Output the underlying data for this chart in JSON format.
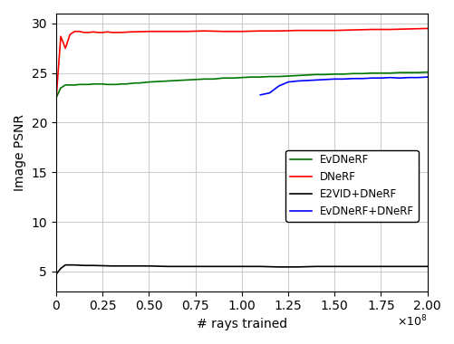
{
  "title": "",
  "xlabel": "# rays trained",
  "ylabel": "Image PSNR",
  "xlim": [
    0,
    200000000
  ],
  "ylim": [
    3,
    31
  ],
  "yticks": [
    5,
    10,
    15,
    20,
    25,
    30
  ],
  "xtick_positions": [
    0,
    25000000,
    50000000,
    75000000,
    100000000,
    125000000,
    150000000,
    175000000,
    200000000
  ],
  "xtick_labels": [
    "0",
    "0.25",
    "0.50",
    "0.75",
    "1.00",
    "1.25",
    "1.50",
    "1.75",
    "2.00"
  ],
  "legend_labels": [
    "EvDNeRF",
    "DNeRF",
    "E2VID+DNeRF",
    "EvDNeRF+DNeRF"
  ],
  "grid_color": "#cccccc",
  "series": {
    "EvDNeRF": {
      "color": "#007700",
      "x": [
        0,
        2500000,
        5000000,
        7500000,
        10000000,
        12500000,
        15000000,
        17500000,
        20000000,
        22500000,
        25000000,
        27500000,
        30000000,
        32500000,
        35000000,
        37500000,
        40000000,
        42500000,
        45000000,
        47500000,
        50000000,
        55000000,
        60000000,
        65000000,
        70000000,
        75000000,
        80000000,
        85000000,
        90000000,
        95000000,
        100000000,
        105000000,
        110000000,
        115000000,
        120000000,
        125000000,
        130000000,
        135000000,
        140000000,
        145000000,
        150000000,
        155000000,
        160000000,
        165000000,
        170000000,
        175000000,
        180000000,
        185000000,
        190000000,
        195000000,
        200000000
      ],
      "y": [
        22.5,
        23.5,
        23.8,
        23.8,
        23.8,
        23.85,
        23.85,
        23.85,
        23.9,
        23.9,
        23.9,
        23.85,
        23.85,
        23.85,
        23.9,
        23.9,
        23.95,
        24.0,
        24.0,
        24.05,
        24.1,
        24.15,
        24.2,
        24.25,
        24.3,
        24.35,
        24.4,
        24.4,
        24.5,
        24.5,
        24.55,
        24.6,
        24.6,
        24.65,
        24.65,
        24.7,
        24.75,
        24.8,
        24.85,
        24.85,
        24.9,
        24.9,
        24.95,
        24.95,
        25.0,
        25.0,
        25.0,
        25.05,
        25.05,
        25.05,
        25.1
      ]
    },
    "DNeRF": {
      "color": "#ff0000",
      "x": [
        0,
        2500000,
        5000000,
        7500000,
        10000000,
        12500000,
        15000000,
        17500000,
        20000000,
        22500000,
        25000000,
        27500000,
        30000000,
        35000000,
        40000000,
        50000000,
        60000000,
        70000000,
        80000000,
        90000000,
        100000000,
        110000000,
        120000000,
        130000000,
        140000000,
        150000000,
        160000000,
        170000000,
        180000000,
        190000000,
        200000000
      ],
      "y": [
        22.3,
        28.7,
        27.5,
        28.9,
        29.2,
        29.2,
        29.1,
        29.1,
        29.15,
        29.1,
        29.1,
        29.15,
        29.1,
        29.1,
        29.15,
        29.2,
        29.2,
        29.2,
        29.25,
        29.2,
        29.2,
        29.25,
        29.25,
        29.3,
        29.3,
        29.3,
        29.35,
        29.4,
        29.4,
        29.45,
        29.5
      ]
    },
    "E2VID+DNeRF": {
      "color": "#000000",
      "x": [
        0,
        2500000,
        5000000,
        7500000,
        10000000,
        15000000,
        20000000,
        30000000,
        40000000,
        50000000,
        60000000,
        70000000,
        80000000,
        90000000,
        100000000,
        110000000,
        120000000,
        130000000,
        140000000,
        150000000,
        160000000,
        170000000,
        180000000,
        190000000,
        200000000
      ],
      "y": [
        4.7,
        5.3,
        5.65,
        5.65,
        5.65,
        5.6,
        5.6,
        5.55,
        5.55,
        5.55,
        5.5,
        5.5,
        5.5,
        5.5,
        5.5,
        5.5,
        5.45,
        5.45,
        5.5,
        5.5,
        5.5,
        5.5,
        5.5,
        5.5,
        5.5
      ]
    },
    "EvDNeRF+DNeRF": {
      "color": "#0000ff",
      "x": [
        110000000,
        115000000,
        120000000,
        125000000,
        130000000,
        135000000,
        140000000,
        145000000,
        150000000,
        155000000,
        160000000,
        165000000,
        170000000,
        175000000,
        180000000,
        185000000,
        190000000,
        195000000,
        200000000
      ],
      "y": [
        22.8,
        23.0,
        23.7,
        24.1,
        24.2,
        24.25,
        24.3,
        24.35,
        24.4,
        24.4,
        24.45,
        24.45,
        24.5,
        24.5,
        24.55,
        24.5,
        24.55,
        24.55,
        24.6
      ]
    }
  }
}
